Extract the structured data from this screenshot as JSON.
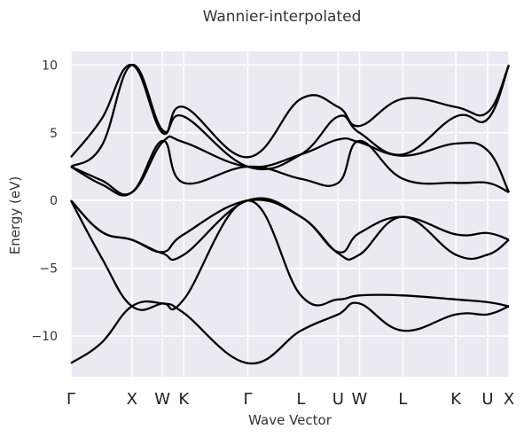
{
  "chart_data": {
    "type": "line",
    "title": "Wannier-interpolated",
    "xlabel": "Wave Vector",
    "ylabel": "Energy (eV)",
    "ylim": [
      -13.0,
      11.0
    ],
    "yticks": [
      10,
      5,
      0,
      -5,
      -10
    ],
    "ytick_labels": [
      "10",
      "5",
      "0",
      "−5",
      "−10"
    ],
    "grid": true,
    "background": "#eaeaf2",
    "line_color": "#000000",
    "kpath": [
      {
        "label": "Γ",
        "x": 0.0
      },
      {
        "label": "X",
        "x": 1.0
      },
      {
        "label": "W",
        "x": 1.5
      },
      {
        "label": "K",
        "x": 1.85
      },
      {
        "label": "Γ",
        "x": 2.9
      },
      {
        "label": "L",
        "x": 3.77
      },
      {
        "label": "U",
        "x": 4.38
      },
      {
        "label": "W",
        "x": 4.73
      },
      {
        "label": "L",
        "x": 5.44
      },
      {
        "label": "K",
        "x": 6.31
      },
      {
        "label": "U",
        "x": 6.83
      },
      {
        "label": "X",
        "x": 7.18
      }
    ],
    "series": [
      {
        "x": [
          0,
          0.5,
          1.0,
          1.5,
          1.85,
          2.9,
          3.77,
          4.38,
          4.73,
          5.44,
          6.31,
          6.83,
          7.18
        ],
        "values": [
          -12.0,
          -10.5,
          -7.8,
          -7.6,
          -8.3,
          -12.0,
          -9.6,
          -8.4,
          -7.6,
          -9.6,
          -8.4,
          -8.4,
          -7.8
        ]
      },
      {
        "x": [
          0,
          0.5,
          1.0,
          1.5,
          1.85,
          2.9,
          3.77,
          4.38,
          4.73,
          5.44,
          6.31,
          6.83,
          7.18
        ],
        "values": [
          0.0,
          -4.2,
          -7.8,
          -7.6,
          -7.3,
          0.0,
          -7.0,
          -7.3,
          -7.0,
          -7.0,
          -7.3,
          -7.5,
          -7.8
        ]
      },
      {
        "x": [
          0,
          0.5,
          1.0,
          1.5,
          1.85,
          2.9,
          3.77,
          4.38,
          4.73,
          5.44,
          6.31,
          6.83,
          7.18
        ],
        "values": [
          0.0,
          -2.3,
          -2.9,
          -3.9,
          -4.0,
          0.0,
          -1.2,
          -3.9,
          -4.0,
          -1.2,
          -4.0,
          -4.0,
          -2.9
        ]
      },
      {
        "x": [
          0,
          0.5,
          1.0,
          1.5,
          1.85,
          2.9,
          3.77,
          4.38,
          4.73,
          5.44,
          6.31,
          6.83,
          7.18
        ],
        "values": [
          0.0,
          -2.3,
          -2.9,
          -3.8,
          -2.5,
          0.0,
          -1.2,
          -3.8,
          -2.4,
          -1.2,
          -2.5,
          -2.4,
          -2.9
        ]
      },
      {
        "x": [
          0,
          0.5,
          1.0,
          1.5,
          1.85,
          2.9,
          3.77,
          4.38,
          4.73,
          5.44,
          6.31,
          6.83,
          7.18
        ],
        "values": [
          2.5,
          1.2,
          0.6,
          4.4,
          1.3,
          2.5,
          1.6,
          1.3,
          4.4,
          1.6,
          1.3,
          1.3,
          0.6
        ]
      },
      {
        "x": [
          0,
          0.5,
          1.0,
          1.5,
          1.85,
          2.9,
          3.77,
          4.38,
          4.73,
          5.44,
          6.31,
          6.83,
          7.18
        ],
        "values": [
          2.5,
          1.5,
          0.6,
          4.3,
          4.3,
          2.5,
          3.4,
          4.5,
          4.3,
          3.3,
          4.2,
          3.7,
          0.6
        ]
      },
      {
        "x": [
          0,
          0.5,
          1.0,
          1.5,
          1.85,
          2.9,
          3.77,
          4.38,
          4.73,
          5.44,
          6.31,
          6.83,
          7.18
        ],
        "values": [
          2.5,
          4.0,
          10.0,
          5.2,
          6.2,
          2.5,
          3.4,
          6.2,
          5.0,
          3.4,
          6.2,
          6.0,
          10.0
        ]
      },
      {
        "x": [
          0,
          0.5,
          1.0,
          1.5,
          1.85,
          2.9,
          3.77,
          4.38,
          4.73,
          5.44,
          6.31,
          6.83,
          7.18
        ],
        "values": [
          3.2,
          6.0,
          10.0,
          5.0,
          6.9,
          3.2,
          7.5,
          6.9,
          5.5,
          7.5,
          6.9,
          6.5,
          10.0
        ]
      }
    ]
  }
}
